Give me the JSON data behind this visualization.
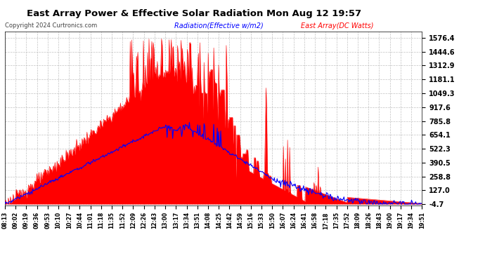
{
  "title": "East Array Power & Effective Solar Radiation Mon Aug 12 19:57",
  "copyright": "Copyright 2024 Curtronics.com",
  "legend_blue": "Radiation(Effective w/m2)",
  "legend_red": "East Array(DC Watts)",
  "yticks": [
    1576.4,
    1444.6,
    1312.9,
    1181.1,
    1049.3,
    917.6,
    785.8,
    654.1,
    522.3,
    390.5,
    258.8,
    127.0,
    -4.7
  ],
  "ymin": -4.7,
  "ymax": 1576.4,
  "xtick_labels": [
    "08:13",
    "09:02",
    "09:19",
    "09:36",
    "09:53",
    "10:10",
    "10:27",
    "10:44",
    "11:01",
    "11:18",
    "11:35",
    "11:52",
    "12:09",
    "12:26",
    "12:43",
    "13:00",
    "13:17",
    "13:34",
    "13:51",
    "14:08",
    "14:25",
    "14:42",
    "14:59",
    "15:16",
    "15:33",
    "15:50",
    "16:07",
    "16:24",
    "16:41",
    "16:58",
    "17:18",
    "17:35",
    "17:52",
    "18:09",
    "18:26",
    "18:43",
    "19:00",
    "19:17",
    "19:34",
    "19:51"
  ],
  "bg_color": "#ffffff",
  "grid_color": "#bbbbbb",
  "red_color": "#ff0000",
  "blue_color": "#0000ff",
  "title_color": "#000000",
  "copyright_color": "#444444"
}
